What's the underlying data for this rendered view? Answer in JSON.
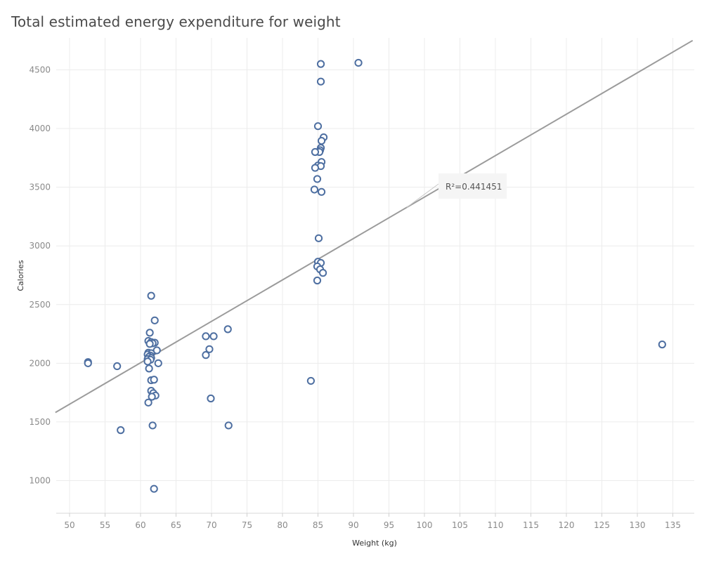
{
  "chart_data": {
    "type": "scatter",
    "title": "Total estimated energy expenditure for weight",
    "xlabel": "Weight (kg)",
    "ylabel": "Calories",
    "xlim": [
      48,
      138
    ],
    "ylim": [
      700,
      4750
    ],
    "x_ticks": [
      50,
      55,
      60,
      65,
      70,
      75,
      80,
      85,
      90,
      95,
      100,
      105,
      110,
      115,
      120,
      125,
      130,
      135
    ],
    "y_ticks": [
      1000,
      1500,
      2000,
      2500,
      3000,
      3500,
      4000,
      4500
    ],
    "grid": true,
    "trend_line": {
      "type": "linear",
      "slope": 35.3,
      "intercept": -114,
      "annotation": "R²=0.441451"
    },
    "series": [
      {
        "color": "#4e6fa1",
        "points": [
          [
            52.6,
            2010
          ],
          [
            52.6,
            2000
          ],
          [
            56.7,
            1975
          ],
          [
            57.2,
            1430
          ],
          [
            61.5,
            2575
          ],
          [
            62.0,
            2365
          ],
          [
            61.3,
            2260
          ],
          [
            61.1,
            2190
          ],
          [
            61.5,
            2180
          ],
          [
            62.0,
            2175
          ],
          [
            61.7,
            2170
          ],
          [
            61.3,
            2165
          ],
          [
            62.3,
            2110
          ],
          [
            61.1,
            2090
          ],
          [
            61.5,
            2085
          ],
          [
            61.0,
            2075
          ],
          [
            61.4,
            2065
          ],
          [
            61.2,
            2055
          ],
          [
            61.5,
            2045
          ],
          [
            61.0,
            2035
          ],
          [
            61.4,
            2030
          ],
          [
            61.0,
            2015
          ],
          [
            62.5,
            2000
          ],
          [
            61.2,
            1955
          ],
          [
            61.5,
            1855
          ],
          [
            61.9,
            1860
          ],
          [
            61.5,
            1765
          ],
          [
            61.8,
            1745
          ],
          [
            62.1,
            1725
          ],
          [
            61.6,
            1715
          ],
          [
            61.1,
            1665
          ],
          [
            61.7,
            1470
          ],
          [
            61.9,
            930
          ],
          [
            69.2,
            2230
          ],
          [
            70.3,
            2230
          ],
          [
            72.3,
            2290
          ],
          [
            69.7,
            2120
          ],
          [
            69.2,
            2070
          ],
          [
            69.9,
            1700
          ],
          [
            72.4,
            1470
          ],
          [
            85.4,
            4550
          ],
          [
            90.7,
            4560
          ],
          [
            85.4,
            4400
          ],
          [
            85.0,
            4020
          ],
          [
            85.8,
            3925
          ],
          [
            85.5,
            3895
          ],
          [
            85.4,
            3835
          ],
          [
            85.3,
            3815
          ],
          [
            85.2,
            3800
          ],
          [
            84.6,
            3800
          ],
          [
            85.5,
            3715
          ],
          [
            85.0,
            3685
          ],
          [
            85.4,
            3680
          ],
          [
            84.6,
            3665
          ],
          [
            84.9,
            3570
          ],
          [
            84.5,
            3480
          ],
          [
            85.5,
            3460
          ],
          [
            85.1,
            3065
          ],
          [
            85.0,
            2865
          ],
          [
            85.4,
            2855
          ],
          [
            84.9,
            2825
          ],
          [
            85.3,
            2800
          ],
          [
            85.7,
            2770
          ],
          [
            84.9,
            2705
          ],
          [
            84.0,
            1850
          ],
          [
            133.5,
            2160
          ]
        ]
      }
    ]
  }
}
